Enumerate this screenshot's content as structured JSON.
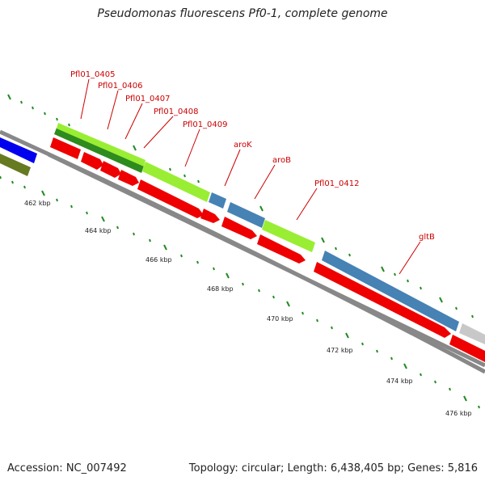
{
  "title": "Pseudomonas fluorescens Pf0-1, complete genome",
  "footer": {
    "accession": "Accession: NC_007492",
    "topology": "Topology: circular; Length: 6,438,405 bp; Genes: 5,816"
  },
  "colors": {
    "gene_label": "#cc0000",
    "cds_red": "#ee0000",
    "orf_blue": "#4682b4",
    "orf_lime": "#99ee33",
    "orf_green": "#2e8b1e",
    "feature_blue": "#0000ee",
    "feature_olive": "#667a22",
    "backbone": "#888888",
    "tick": "#228b22"
  },
  "gene_labels": [
    "Pfl01_0405",
    "Pfl01_0406",
    "Pfl01_0407",
    "Pfl01_0408",
    "Pfl01_0409",
    "aroK",
    "aroB",
    "Pfl01_0412",
    "gltB"
  ],
  "tick_labels": [
    "462 kbp",
    "464 kbp",
    "466 kbp",
    "468 kbp",
    "470 kbp",
    "472 kbp",
    "474 kbp",
    "476 kbp"
  ]
}
